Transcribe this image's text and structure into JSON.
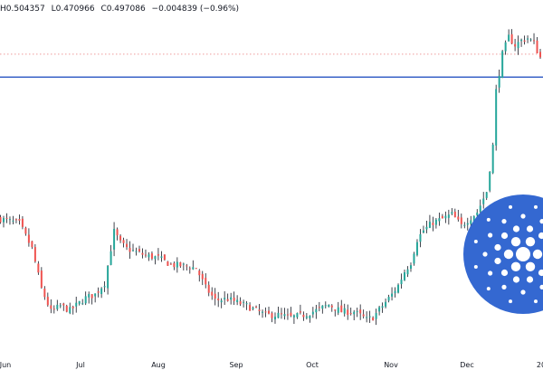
{
  "ohlc": {
    "high": "H0.504357",
    "low": "L0.470966",
    "close": "C0.497086",
    "change": "−0.004839 (−0.96%)"
  },
  "colors": {
    "up": "#26a69a",
    "down": "#ef5350",
    "wick": "#131722",
    "hline": "#3a63c7",
    "dotted": "#ef9a9a",
    "logo": "#3468d1"
  },
  "icons": {
    "watermark": "cardano-logo-icon"
  },
  "chart_data": {
    "type": "candlestick",
    "title": "",
    "xlabel": "",
    "ylabel": "",
    "grid": false,
    "x_tick_labels": [
      "Jun",
      "Jul",
      "Aug",
      "Sep",
      "Oct",
      "Nov",
      "Dec",
      "20"
    ],
    "horizontal_line": 0.48,
    "dotted_line": 0.5,
    "ylim": [
      0.235,
      0.53
    ],
    "close_path": [
      [
        0,
        0.356
      ],
      [
        6,
        0.352
      ],
      [
        10,
        0.33
      ],
      [
        13,
        0.295
      ],
      [
        16,
        0.275
      ],
      [
        19,
        0.28
      ],
      [
        22,
        0.276
      ],
      [
        27,
        0.287
      ],
      [
        30,
        0.29
      ],
      [
        33,
        0.3
      ],
      [
        36,
        0.345
      ],
      [
        38,
        0.335
      ],
      [
        40,
        0.33
      ],
      [
        46,
        0.324
      ],
      [
        50,
        0.322
      ],
      [
        54,
        0.316
      ],
      [
        58,
        0.315
      ],
      [
        62,
        0.313
      ],
      [
        65,
        0.296
      ],
      [
        68,
        0.285
      ],
      [
        72,
        0.286
      ],
      [
        78,
        0.28
      ],
      [
        84,
        0.272
      ],
      [
        88,
        0.272
      ],
      [
        92,
        0.27
      ],
      [
        96,
        0.272
      ],
      [
        100,
        0.276
      ],
      [
        104,
        0.281
      ],
      [
        108,
        0.275
      ],
      [
        112,
        0.275
      ],
      [
        116,
        0.268
      ],
      [
        118,
        0.27
      ],
      [
        121,
        0.28
      ],
      [
        124,
        0.29
      ],
      [
        126,
        0.298
      ],
      [
        128,
        0.31
      ],
      [
        130,
        0.318
      ],
      [
        132,
        0.338
      ],
      [
        134,
        0.346
      ],
      [
        137,
        0.353
      ],
      [
        140,
        0.356
      ],
      [
        143,
        0.36
      ],
      [
        146,
        0.35
      ],
      [
        148,
        0.355
      ],
      [
        151,
        0.362
      ],
      [
        154,
        0.38
      ],
      [
        156,
        0.42
      ],
      [
        157,
        0.468
      ],
      [
        159,
        0.5
      ],
      [
        161,
        0.515
      ],
      [
        163,
        0.508
      ],
      [
        165,
        0.512
      ],
      [
        167,
        0.514
      ],
      [
        169,
        0.51
      ],
      [
        170,
        0.503
      ],
      [
        171,
        0.497
      ]
    ]
  }
}
